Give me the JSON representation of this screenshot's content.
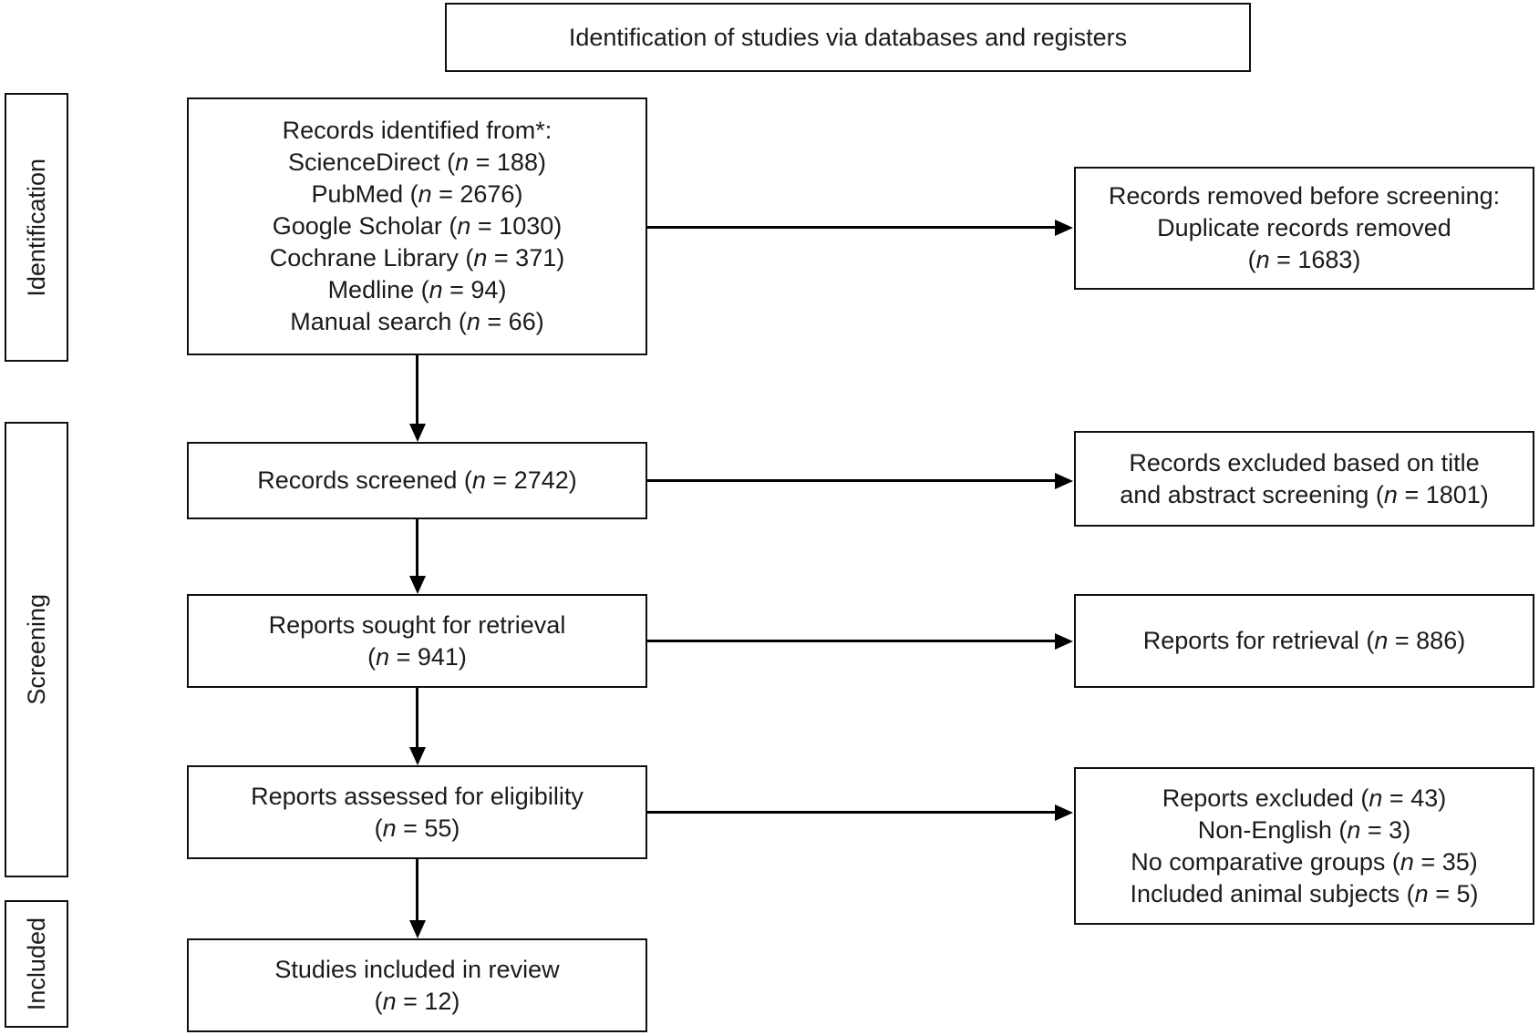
{
  "title": "Identification of studies via databases and registers",
  "stages": [
    {
      "label": "Identification"
    },
    {
      "label": "Screening"
    },
    {
      "label": "Included"
    }
  ],
  "boxes": {
    "left": [
      {
        "name": "records-identified",
        "lines": [
          "Records identified from*:",
          "ScienceDirect (n = 188)",
          "PubMed (n = 2676)",
          "Google Scholar (n = 1030)",
          "Cochrane Library (n = 371)",
          "Medline (n = 94)",
          "Manual search (n = 66)"
        ]
      },
      {
        "name": "records-screened",
        "lines": [
          "Records screened (n = 2742)"
        ]
      },
      {
        "name": "reports-sought",
        "lines": [
          "Reports sought for retrieval",
          "(n = 941)"
        ]
      },
      {
        "name": "reports-assessed",
        "lines": [
          "Reports assessed for eligibility",
          "(n = 55)"
        ]
      },
      {
        "name": "studies-included",
        "lines": [
          "Studies included in review",
          "(n = 12)"
        ]
      }
    ],
    "right": [
      {
        "name": "records-removed",
        "lines": [
          "Records removed before screening:",
          "Duplicate records removed",
          "(n = 1683)"
        ]
      },
      {
        "name": "records-excluded",
        "lines": [
          "Records excluded based on title",
          "and abstract screening (n = 1801)"
        ]
      },
      {
        "name": "reports-for-retrieval",
        "lines": [
          "Reports for retrieval (n = 886)"
        ]
      },
      {
        "name": "reports-excluded",
        "lines": [
          "Reports excluded (n = 43)",
          "Non-English (n = 3)",
          "No comparative groups (n = 35)",
          "Included animal subjects (n = 5)"
        ]
      }
    ]
  },
  "colors": {
    "border": "#101010",
    "text": "#1b1b1b",
    "background": "#ffffff"
  }
}
